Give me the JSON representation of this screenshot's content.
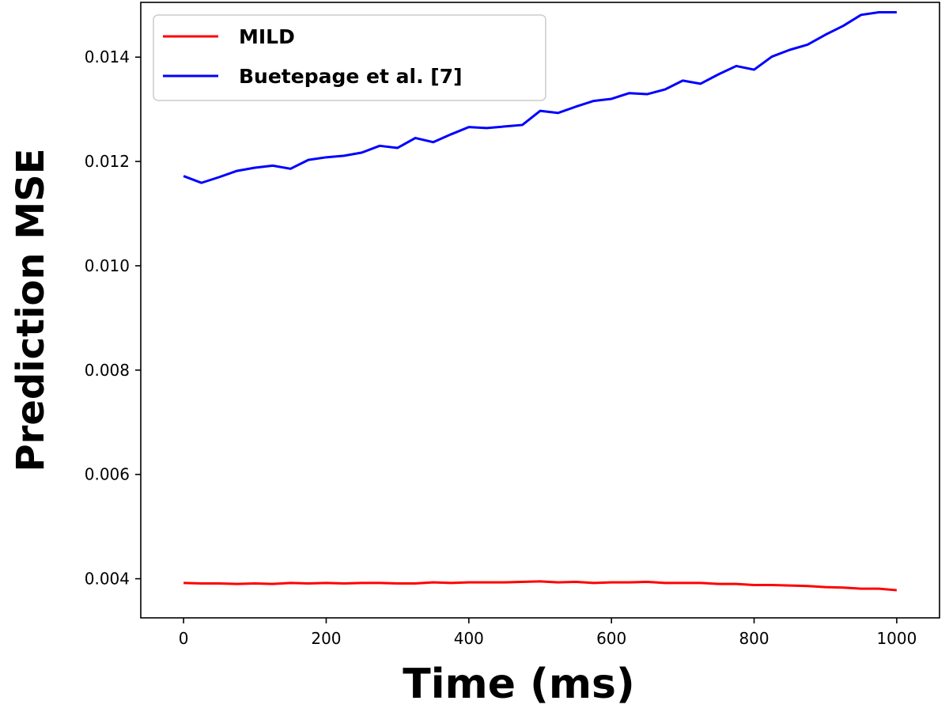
{
  "chart_data": {
    "type": "line",
    "title": "",
    "xlabel": "Time (ms)",
    "ylabel": "Prediction MSE",
    "xlim": [
      -60,
      1060
    ],
    "ylim": [
      0.00325,
      0.01505
    ],
    "x_ticks": [
      0,
      200,
      400,
      600,
      800,
      1000
    ],
    "x_tick_labels": [
      "0",
      "200",
      "400",
      "600",
      "800",
      "1000"
    ],
    "y_ticks": [
      0.004,
      0.006,
      0.008,
      0.01,
      0.012,
      0.014
    ],
    "y_tick_labels": [
      "0.004",
      "0.006",
      "0.008",
      "0.010",
      "0.012",
      "0.014"
    ],
    "grid": false,
    "legend_position": "top-left",
    "x": [
      0,
      25,
      50,
      75,
      100,
      125,
      150,
      175,
      200,
      225,
      250,
      275,
      300,
      325,
      350,
      375,
      400,
      425,
      450,
      475,
      500,
      525,
      550,
      575,
      600,
      625,
      650,
      675,
      700,
      725,
      750,
      775,
      800,
      825,
      850,
      875,
      900,
      925,
      950,
      975,
      1000
    ],
    "series": [
      {
        "name": "MILD",
        "color": "#ff0000",
        "values": [
          0.00392,
          0.00391,
          0.00391,
          0.0039,
          0.00391,
          0.0039,
          0.00392,
          0.00391,
          0.00392,
          0.00391,
          0.00392,
          0.00392,
          0.00391,
          0.00391,
          0.00393,
          0.00392,
          0.00393,
          0.00393,
          0.00393,
          0.00394,
          0.00395,
          0.00393,
          0.00394,
          0.00392,
          0.00393,
          0.00393,
          0.00394,
          0.00392,
          0.00392,
          0.00392,
          0.0039,
          0.0039,
          0.00388,
          0.00388,
          0.00387,
          0.00386,
          0.00384,
          0.00383,
          0.00381,
          0.00381,
          0.00378
        ]
      },
      {
        "name": "Buetepage et al. [7]",
        "color": "#0000ff",
        "values": [
          0.01172,
          0.01159,
          0.0117,
          0.01182,
          0.01188,
          0.01192,
          0.01186,
          0.01203,
          0.01208,
          0.01211,
          0.01217,
          0.0123,
          0.01226,
          0.01245,
          0.01237,
          0.01252,
          0.01266,
          0.01264,
          0.01267,
          0.0127,
          0.01297,
          0.01293,
          0.01305,
          0.01316,
          0.0132,
          0.01331,
          0.01329,
          0.01338,
          0.01355,
          0.01349,
          0.01367,
          0.01383,
          0.01376,
          0.01401,
          0.01414,
          0.01424,
          0.01443,
          0.0146,
          0.01481,
          0.01486,
          0.01486
        ]
      }
    ]
  }
}
